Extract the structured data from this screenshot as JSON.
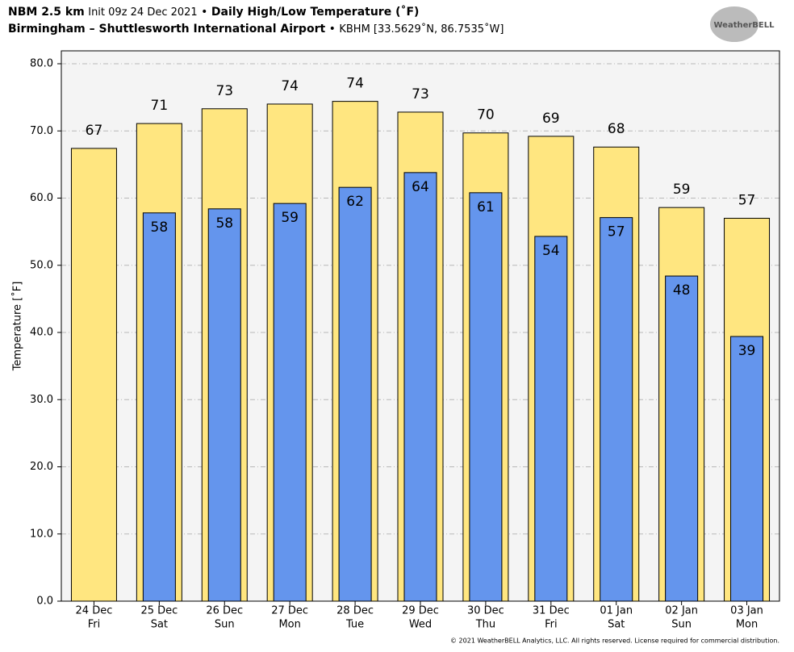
{
  "header": {
    "model": "NBM 2.5 km",
    "init": "Init 09z 24 Dec 2021",
    "separator": "•",
    "product": "Daily High/Low Temperature (˚F)",
    "station": "Birmingham – Shuttlesworth International Airport",
    "location": "KBHM [33.5629˚N, 86.7535˚W]",
    "logo": "WeatherBELL",
    "footer": "© 2021 WeatherBELL Analytics, LLC. All rights reserved. License required for commercial distribution."
  },
  "chart_data": {
    "type": "bar",
    "y_label": "Temperature [˚F]",
    "categories": [
      "24 Dec",
      "25 Dec",
      "26 Dec",
      "27 Dec",
      "28 Dec",
      "29 Dec",
      "30 Dec",
      "31 Dec",
      "01 Jan",
      "02 Jan",
      "03 Jan"
    ],
    "category_days": [
      "Fri",
      "Sat",
      "Sun",
      "Mon",
      "Tue",
      "Wed",
      "Thu",
      "Fri",
      "Sat",
      "Sun",
      "Mon"
    ],
    "series": [
      {
        "color": "#ffe680",
        "values": [
          67.4,
          71.1,
          73.3,
          74.0,
          74.4,
          72.8,
          69.7,
          69.2,
          67.6,
          58.6,
          57.0
        ],
        "value_labels": [
          "67",
          "71",
          "73",
          "74",
          "74",
          "73",
          "70",
          "69",
          "68",
          "59",
          "57"
        ]
      },
      {
        "color": "#6495ed",
        "values": [
          null,
          57.8,
          58.4,
          59.2,
          61.6,
          63.8,
          60.8,
          54.3,
          57.1,
          48.4,
          39.4
        ],
        "value_labels": [
          null,
          "58",
          "58",
          "59",
          "62",
          "64",
          "61",
          "54",
          "57",
          "48",
          "39"
        ]
      }
    ],
    "ylim": [
      0,
      80
    ],
    "yticks": [
      {
        "value": 0,
        "label": "0.0"
      },
      {
        "value": 10,
        "label": "10.0"
      },
      {
        "value": 20,
        "label": "20.0"
      },
      {
        "value": 30,
        "label": "30.0"
      },
      {
        "value": 40,
        "label": "40.0"
      },
      {
        "value": 50,
        "label": "50.0"
      },
      {
        "value": 60,
        "label": "60.0"
      },
      {
        "value": 70,
        "label": "70.0"
      },
      {
        "value": 80,
        "label": "80.0"
      }
    ],
    "grid": true
  }
}
